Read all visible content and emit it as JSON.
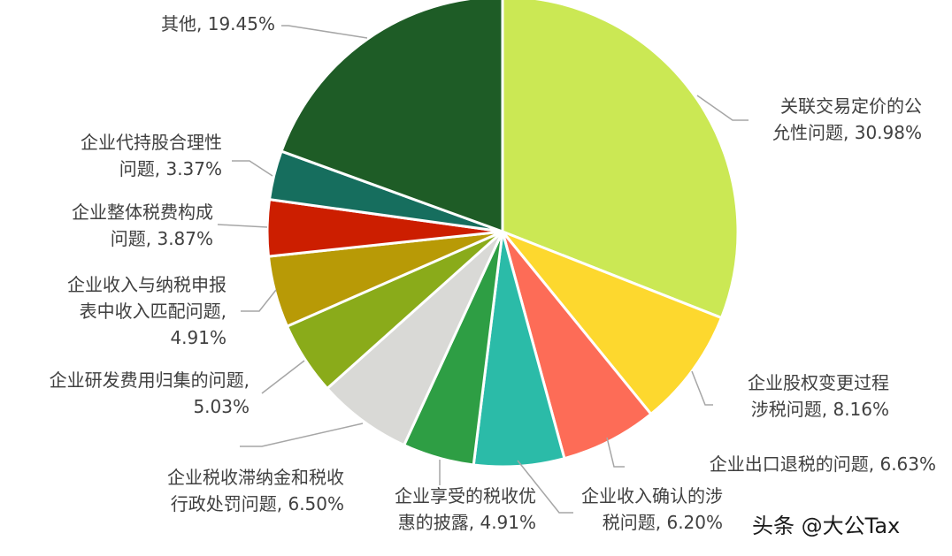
{
  "chart_data": {
    "type": "pie",
    "slices": [
      {
        "label": "关联交易定价的公允性问题",
        "lines": [
          "关联交易定价的公",
          "允性问题, 30.98%"
        ],
        "value": 30.98,
        "color": "#cbe854"
      },
      {
        "label": "企业股权变更过程涉税问题",
        "lines": [
          "企业股权变更过程",
          "涉税问题, 8.16%"
        ],
        "value": 8.16,
        "color": "#fdd82e"
      },
      {
        "label": "企业出口退税的问题",
        "lines": [
          "企业出口退税的问题, 6.63%"
        ],
        "value": 6.63,
        "color": "#fd6c57"
      },
      {
        "label": "企业收入确认的涉税问题",
        "lines": [
          "企业收入确认的涉",
          "税问题, 6.20%"
        ],
        "value": 6.2,
        "color": "#2bbba8"
      },
      {
        "label": "企业享受的税收优惠的披露",
        "lines": [
          "企业享受的税收优",
          "惠的披露, 4.91%"
        ],
        "value": 4.91,
        "color": "#2e9e44"
      },
      {
        "label": "企业税收滞纳金和税收行政处罚问题",
        "lines": [
          "企业税收滞纳金和税收",
          "行政处罚问题, 6.50%"
        ],
        "value": 6.5,
        "color": "#d9d9d6"
      },
      {
        "label": "企业研发费用归集的问题",
        "lines": [
          "企业研发费用归集的问题,",
          "5.03%"
        ],
        "value": 5.03,
        "color": "#8aab1a"
      },
      {
        "label": "企业收入与纳税申报表中收入匹配问题",
        "lines": [
          "企业收入与纳税申报",
          "表中收入匹配问题,",
          "4.91%"
        ],
        "value": 4.91,
        "color": "#b89a06"
      },
      {
        "label": "企业整体税费构成问题",
        "lines": [
          "企业整体税费构成",
          "问题, 3.87%"
        ],
        "value": 3.87,
        "color": "#cc1e00"
      },
      {
        "label": "企业代持股合理性问题",
        "lines": [
          "企业代持股合理性",
          "问题, 3.37%"
        ],
        "value": 3.37,
        "color": "#166e5e"
      },
      {
        "label": "其他",
        "lines": [
          "其他, 19.45%"
        ],
        "value": 19.45,
        "color": "#1e5c26"
      }
    ]
  },
  "watermark": {
    "text": "头条 @大公Tax"
  }
}
